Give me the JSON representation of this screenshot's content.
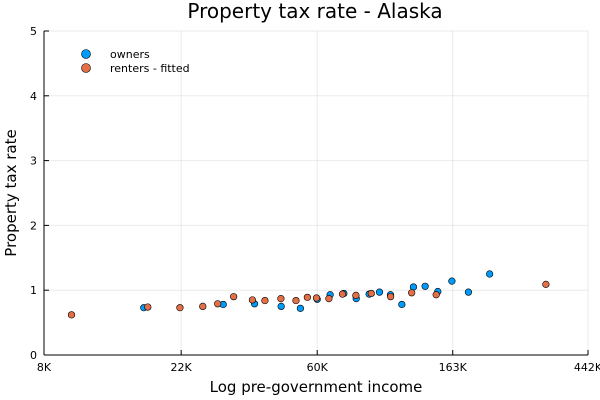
{
  "chart_data": {
    "type": "scatter",
    "title": "Property tax rate - Alaska",
    "xlabel": "Log pre-government income",
    "ylabel": "Property tax rate",
    "xscale": "log",
    "xlim": [
      8000,
      442000
    ],
    "ylim": [
      0,
      5
    ],
    "xticks": [
      {
        "value": 8000,
        "label": "8K"
      },
      {
        "value": 22000,
        "label": "22K"
      },
      {
        "value": 60000,
        "label": "60K"
      },
      {
        "value": 163000,
        "label": "163K"
      },
      {
        "value": 442000,
        "label": "442K"
      }
    ],
    "yticks": [
      {
        "value": 0,
        "label": "0"
      },
      {
        "value": 1,
        "label": "1"
      },
      {
        "value": 2,
        "label": "2"
      },
      {
        "value": 3,
        "label": "3"
      },
      {
        "value": 4,
        "label": "4"
      },
      {
        "value": 5,
        "label": "5"
      }
    ],
    "grid": true,
    "legend_position": "top-left",
    "series": [
      {
        "name": "owners",
        "color": "#009af9",
        "points": [
          {
            "x": 16700,
            "y": 0.73
          },
          {
            "x": 30000,
            "y": 0.78
          },
          {
            "x": 37800,
            "y": 0.79
          },
          {
            "x": 46000,
            "y": 0.75
          },
          {
            "x": 53000,
            "y": 0.72
          },
          {
            "x": 60000,
            "y": 0.86
          },
          {
            "x": 66000,
            "y": 0.93
          },
          {
            "x": 73000,
            "y": 0.95
          },
          {
            "x": 80000,
            "y": 0.87
          },
          {
            "x": 88000,
            "y": 0.94
          },
          {
            "x": 95000,
            "y": 0.97
          },
          {
            "x": 103000,
            "y": 0.93
          },
          {
            "x": 112000,
            "y": 0.78
          },
          {
            "x": 122000,
            "y": 1.05
          },
          {
            "x": 133000,
            "y": 1.06
          },
          {
            "x": 146000,
            "y": 0.98
          },
          {
            "x": 162000,
            "y": 1.14
          },
          {
            "x": 183000,
            "y": 0.97
          },
          {
            "x": 214000,
            "y": 1.25
          }
        ]
      },
      {
        "name": "renters - fitted",
        "color": "#e26f46",
        "points": [
          {
            "x": 9800,
            "y": 0.62
          },
          {
            "x": 17200,
            "y": 0.74
          },
          {
            "x": 21800,
            "y": 0.73
          },
          {
            "x": 25800,
            "y": 0.75
          },
          {
            "x": 28800,
            "y": 0.79
          },
          {
            "x": 32400,
            "y": 0.9
          },
          {
            "x": 37200,
            "y": 0.85
          },
          {
            "x": 40800,
            "y": 0.84
          },
          {
            "x": 45900,
            "y": 0.87
          },
          {
            "x": 51300,
            "y": 0.84
          },
          {
            "x": 55800,
            "y": 0.89
          },
          {
            "x": 59700,
            "y": 0.88
          },
          {
            "x": 65400,
            "y": 0.87
          },
          {
            "x": 72300,
            "y": 0.94
          },
          {
            "x": 79800,
            "y": 0.92
          },
          {
            "x": 89400,
            "y": 0.95
          },
          {
            "x": 103100,
            "y": 0.9
          },
          {
            "x": 120400,
            "y": 0.96
          },
          {
            "x": 144300,
            "y": 0.93
          },
          {
            "x": 324000,
            "y": 1.09
          }
        ]
      }
    ]
  }
}
